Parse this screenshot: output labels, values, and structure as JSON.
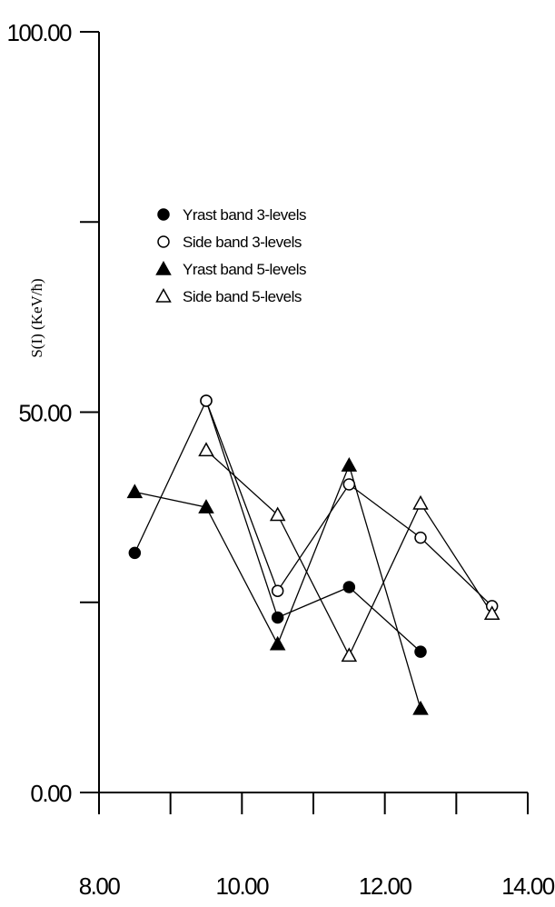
{
  "chart_data": {
    "type": "line",
    "xlabel": "",
    "ylabel": "S(I) (KeV/ħ)",
    "xlim": [
      8.0,
      14.0
    ],
    "ylim": [
      0.0,
      100.0
    ],
    "x_ticks": [
      "8.00",
      "10.00",
      "12.00",
      "14.00"
    ],
    "y_ticks": [
      "0.00",
      "50.00",
      "100.00"
    ],
    "grid": false,
    "legend_position": "upper-left",
    "series": [
      {
        "name": "Yrast band 3-levels",
        "marker": "filled-circle",
        "x": [
          8.5,
          9.5,
          10.5,
          11.5,
          12.5
        ],
        "y": [
          31.5,
          51.5,
          23.0,
          27.0,
          18.5
        ]
      },
      {
        "name": "Side band 3-levels",
        "marker": "open-circle",
        "x": [
          9.5,
          10.5,
          11.5,
          12.5,
          13.5
        ],
        "y": [
          51.5,
          26.5,
          40.5,
          33.5,
          24.5
        ]
      },
      {
        "name": "Yrast band 5-levels",
        "marker": "filled-triangle",
        "x": [
          8.5,
          9.5,
          10.5,
          11.5,
          12.5
        ],
        "y": [
          39.5,
          37.5,
          19.5,
          43.0,
          11.0
        ]
      },
      {
        "name": "Side band 5-levels",
        "marker": "open-triangle",
        "x": [
          9.5,
          10.5,
          11.5,
          12.5,
          13.5
        ],
        "y": [
          45.0,
          36.5,
          18.0,
          38.0,
          23.5
        ]
      }
    ]
  }
}
